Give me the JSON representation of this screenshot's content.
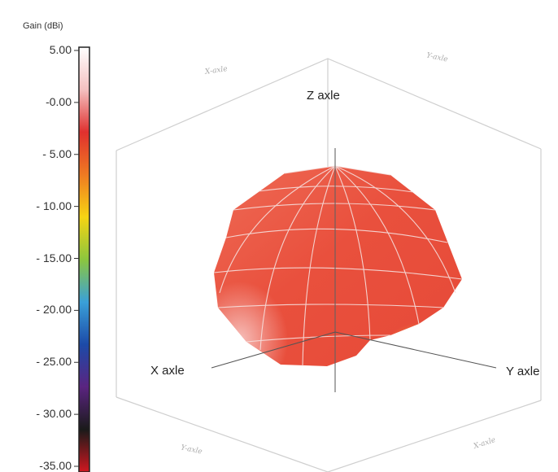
{
  "chart_data": {
    "type": "3d-radiation-pattern",
    "colorbar": {
      "title": "Gain (dBi)",
      "ticks": [
        "5.00",
        "-0.00",
        "- 5.00",
        "- 10.00",
        "- 15.00",
        "- 20.00",
        "- 25.00",
        "- 30.00",
        "-35.00"
      ],
      "range": [
        -35,
        5
      ],
      "stops": [
        "#ffffff",
        "#f4c0c0",
        "#e0302e",
        "#ef7a22",
        "#f6d413",
        "#8cc63e",
        "#3aa0d8",
        "#1c4aa8",
        "#5a2480",
        "#1a1a1a",
        "#d01820"
      ]
    },
    "axes": {
      "x": "X axle",
      "y": "Y axle",
      "z": "Z axle"
    },
    "faint_labels": {
      "top_left": "X-axle",
      "top_right": "Y-axle",
      "bottom_left": "Y-axle",
      "bottom_right": "X-axle"
    },
    "surface": {
      "description_gain_max_dBi": 3,
      "colors": {
        "main": "#e9533f",
        "highlight": "#f6a4a0",
        "shade": "#f19a3b",
        "mesh": "#f4dede"
      }
    }
  }
}
